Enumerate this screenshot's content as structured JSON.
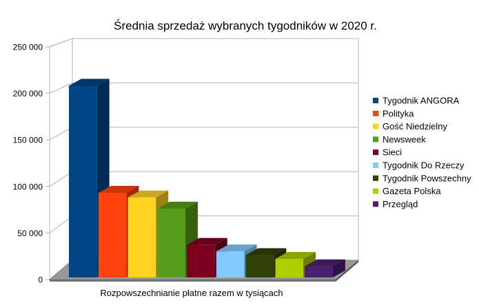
{
  "chart_data": {
    "type": "bar",
    "title": "Średnia sprzedaż wybranych tygodników w 2020 r.",
    "xlabel": "Rozpowszechnianie płatne razem w tysiącach",
    "ylabel": "",
    "ylim": [
      0,
      250000
    ],
    "yticks": [
      {
        "value": 0,
        "label": "0"
      },
      {
        "value": 50000,
        "label": "50 000"
      },
      {
        "value": 100000,
        "label": "100 000"
      },
      {
        "value": 150000,
        "label": "150 000"
      },
      {
        "value": 200000,
        "label": "200 000"
      },
      {
        "value": 250000,
        "label": "250 000"
      }
    ],
    "grid": true,
    "legend_position": "right",
    "render_3d": true,
    "series": [
      {
        "name": "Tygodnik ANGORA",
        "value": 206000,
        "color": "#004586"
      },
      {
        "name": "Polityka",
        "value": 91000,
        "color": "#ff420e"
      },
      {
        "name": "Gość Niedzielny",
        "value": 86000,
        "color": "#ffd320"
      },
      {
        "name": "Newsweek",
        "value": 74000,
        "color": "#579d1c"
      },
      {
        "name": "Sieci",
        "value": 35000,
        "color": "#7e0021"
      },
      {
        "name": "Tygodnik Do Rzeczy",
        "value": 28000,
        "color": "#83caff"
      },
      {
        "name": "Tygodnik Powszechny",
        "value": 24000,
        "color": "#314004"
      },
      {
        "name": "Gazeta Polska",
        "value": 20000,
        "color": "#aecf00"
      },
      {
        "name": "Przegląd",
        "value": 12000,
        "color": "#4b1f6f"
      }
    ]
  }
}
